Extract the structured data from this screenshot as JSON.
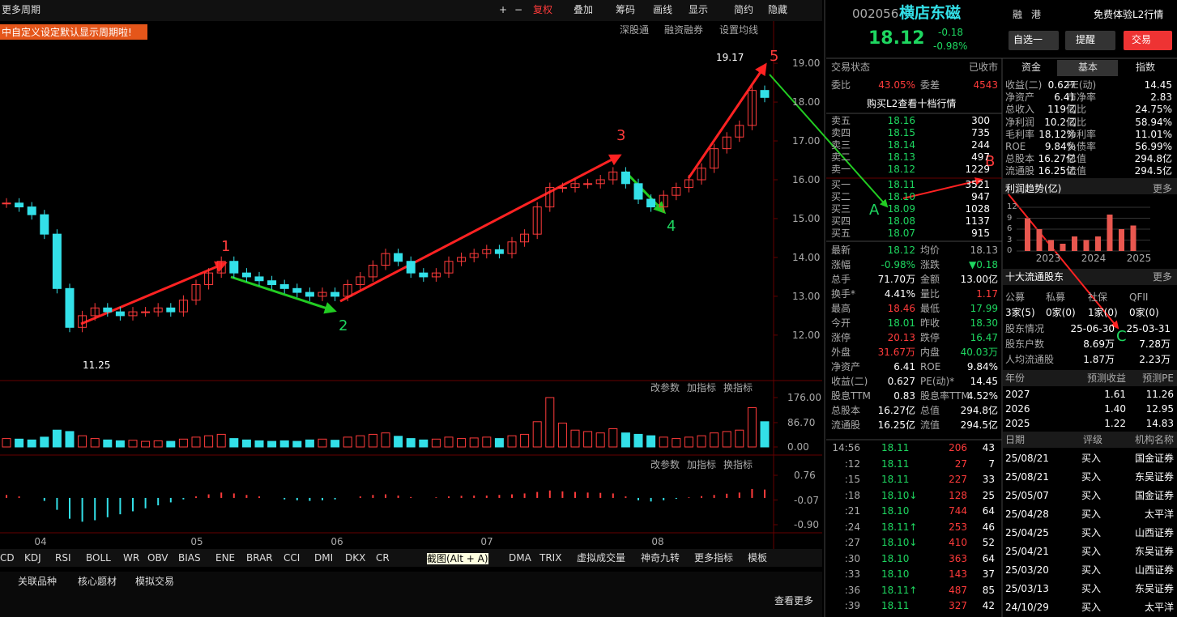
{
  "toolbar": {
    "period": "更多周期",
    "notice": "中自定义设定默认显示周期啦!",
    "buttons": [
      "+",
      "−",
      "复权",
      "叠加",
      "筹码",
      "画线",
      "显示",
      "简约",
      "隐藏"
    ],
    "sub": [
      "深股通",
      "融资融券",
      "设置均线"
    ]
  },
  "price_chart": {
    "type": "candlestick",
    "ylim": [
      10.83,
      19.69
    ],
    "yticks": [
      {
        "value": 19,
        "label": "19.00"
      },
      {
        "value": 18,
        "label": "18.00"
      },
      {
        "value": 17,
        "label": "17.00"
      },
      {
        "value": 16,
        "label": "16.00"
      },
      {
        "value": 15,
        "label": "15.00"
      },
      {
        "value": 14,
        "label": "14.00"
      },
      {
        "value": 13,
        "label": "13.00"
      },
      {
        "value": 12,
        "label": "12.00"
      }
    ],
    "closes": [
      15.4,
      15.3,
      15.1,
      14.6,
      13.2,
      12.2,
      12.5,
      12.7,
      12.6,
      12.5,
      12.6,
      12.6,
      12.7,
      12.6,
      12.9,
      13.3,
      13.6,
      13.9,
      13.6,
      13.5,
      13.4,
      13.3,
      13.2,
      13.1,
      13.0,
      13.1,
      13.0,
      13.3,
      13.5,
      13.8,
      14.1,
      13.9,
      13.6,
      13.5,
      13.6,
      13.9,
      14.0,
      14.1,
      14.2,
      14.1,
      14.4,
      14.6,
      15.3,
      15.8,
      15.8,
      15.9,
      15.9,
      16.0,
      16.2,
      15.9,
      15.5,
      15.3,
      15.6,
      15.8,
      16.0,
      16.3,
      16.8,
      17.1,
      17.4,
      18.3,
      18.12
    ],
    "high_label": "19.17",
    "low_label": "11.25",
    "annotations": [
      "1",
      "2",
      "3",
      "4",
      "5",
      "A",
      "B",
      "C"
    ],
    "months": [
      "04",
      "05",
      "06",
      "07",
      "08"
    ]
  },
  "volume_chart": {
    "type": "bar",
    "ylim": [
      0,
      176
    ],
    "yticks": [
      {
        "value": 176,
        "label": "176.00"
      },
      {
        "value": 86.7,
        "label": "86.70"
      },
      {
        "value": 0,
        "label": "0.00"
      }
    ],
    "values": [
      30,
      28,
      25,
      35,
      60,
      55,
      40,
      30,
      25,
      22,
      24,
      20,
      22,
      20,
      28,
      35,
      40,
      45,
      30,
      25,
      22,
      20,
      22,
      20,
      25,
      28,
      24,
      35,
      40,
      45,
      50,
      38,
      30,
      25,
      28,
      35,
      30,
      32,
      35,
      30,
      40,
      45,
      90,
      176,
      85,
      60,
      55,
      50,
      65,
      50,
      45,
      40,
      35,
      30,
      35,
      40,
      50,
      55,
      60,
      140,
      90
    ],
    "tools": [
      "改参数",
      "加指标",
      "换指标"
    ]
  },
  "macd_chart": {
    "type": "bar",
    "ylim": [
      -0.9,
      0.76
    ],
    "yticks": [
      {
        "value": 0.76,
        "label": "0.76"
      },
      {
        "value": -0.07,
        "label": "-0.07"
      },
      {
        "value": -0.9,
        "label": "-0.90"
      }
    ],
    "values": [
      0.1,
      0.05,
      0,
      -0.1,
      -0.4,
      -0.7,
      -0.8,
      -0.75,
      -0.65,
      -0.55,
      -0.45,
      -0.35,
      -0.25,
      -0.15,
      -0.05,
      0.05,
      0.12,
      0.18,
      0.15,
      0.1,
      0.05,
      0,
      -0.05,
      -0.08,
      -0.1,
      -0.08,
      -0.05,
      0,
      0.05,
      0.1,
      0.12,
      0.08,
      0.03,
      0,
      0.02,
      0.05,
      0.07,
      0.08,
      0.08,
      0.1,
      0.12,
      0.15,
      0.2,
      0.25,
      0.22,
      0.2,
      0.18,
      0.17,
      0.15,
      0.05,
      -0.08,
      -0.12,
      -0.08,
      -0.03,
      0.02,
      0.06,
      0.1,
      0.14,
      0.18,
      0.3,
      0.28
    ],
    "tools": [
      "改参数",
      "加指标",
      "换指标"
    ]
  },
  "indicator_tabs": [
    "CD",
    "KDJ",
    "RSI",
    "BOLL",
    "WR",
    "OBV",
    "BIAS",
    "ENE",
    "BRAR",
    "CCI",
    "DMI",
    "DKX",
    "CR",
    "DMA",
    "TRIX",
    "虚拟成交量",
    "神奇九转",
    "更多指标",
    "模板"
  ],
  "tooltip": "截图(Alt + A)",
  "bottom_tabs": [
    "关联品种",
    "核心题材",
    "模拟交易"
  ],
  "see_more": "查看更多",
  "quote": {
    "code": "002056",
    "name": "横店东磁",
    "tags": [
      "融",
      "港"
    ],
    "l2": "免费体验L2行情",
    "price": "18.12",
    "change": "-0.18",
    "pct": "-0.98%",
    "buttons": [
      "自选一",
      "提醒",
      "交易"
    ],
    "status": [
      "交易状态",
      "已收市"
    ],
    "ratio": [
      "委比",
      "43.05%",
      "委差",
      "4543"
    ],
    "buy_l2": "购买L2查看十档行情",
    "sells": [
      [
        "卖五",
        "18.16",
        "300"
      ],
      [
        "卖四",
        "18.15",
        "735"
      ],
      [
        "卖三",
        "18.14",
        "244"
      ],
      [
        "卖二",
        "18.13",
        "497"
      ],
      [
        "卖一",
        "18.12",
        "1229"
      ]
    ],
    "buys": [
      [
        "买一",
        "18.11",
        "3521"
      ],
      [
        "买二",
        "18.10",
        "947"
      ],
      [
        "买三",
        "18.09",
        "1028"
      ],
      [
        "买四",
        "18.08",
        "1137"
      ],
      [
        "买五",
        "18.07",
        "915"
      ]
    ],
    "stats": [
      [
        "最新",
        "18.12",
        "均价",
        "18.13"
      ],
      [
        "涨幅",
        "-0.98%",
        "涨跌",
        "▼0.18"
      ],
      [
        "总手",
        "71.70万",
        "金额",
        "13.00亿"
      ],
      [
        "换手*",
        "4.41%",
        "量比",
        "1.17"
      ],
      [
        "最高",
        "18.46",
        "最低",
        "17.99"
      ],
      [
        "今开",
        "18.01",
        "昨收",
        "18.30"
      ],
      [
        "涨停",
        "20.13",
        "跌停",
        "16.47"
      ],
      [
        "外盘",
        "31.67万",
        "内盘",
        "40.03万"
      ],
      [
        "净资产",
        "6.41",
        "ROE",
        "9.84%"
      ],
      [
        "收益(二)",
        "0.627",
        "PE(动)*",
        "14.45"
      ],
      [
        "股息TTM",
        "0.83",
        "股息率TTM",
        "4.52%"
      ],
      [
        "总股本",
        "16.27亿",
        "总值",
        "294.8亿"
      ],
      [
        "流通股",
        "16.25亿",
        "流值",
        "294.5亿"
      ]
    ],
    "ticks": [
      [
        "14:56",
        "18.11",
        "206",
        "43"
      ],
      [
        ":12",
        "18.11",
        "27",
        "7"
      ],
      [
        ":15",
        "18.11",
        "227",
        "33"
      ],
      [
        ":18",
        "18.10↓",
        "128",
        "25"
      ],
      [
        ":21",
        "18.10",
        "744",
        "64"
      ],
      [
        ":24",
        "18.11↑",
        "253",
        "46"
      ],
      [
        ":27",
        "18.10↓",
        "410",
        "52"
      ],
      [
        ":30",
        "18.10",
        "363",
        "64"
      ],
      [
        ":33",
        "18.10",
        "143",
        "37"
      ],
      [
        ":36",
        "18.11↑",
        "487",
        "85"
      ],
      [
        ":39",
        "18.11",
        "327",
        "42"
      ]
    ]
  },
  "fundamentals": {
    "tabs": [
      "资金",
      "基本",
      "指数"
    ],
    "rows": [
      [
        "收益(二)",
        "0.627",
        "PE(动)",
        "14.45"
      ],
      [
        "净资产",
        "6.41",
        "市净率",
        "2.83"
      ],
      [
        "总收入",
        "119亿",
        "同比",
        "24.75%"
      ],
      [
        "净利润",
        "10.2亿",
        "同比",
        "58.94%"
      ],
      [
        "毛利率",
        "18.12%",
        "净利率",
        "11.01%"
      ],
      [
        "ROE",
        "9.84%",
        "负债率",
        "56.99%"
      ],
      [
        "总股本",
        "16.27亿",
        "总值",
        "294.8亿"
      ],
      [
        "流通股",
        "16.25亿",
        "流值",
        "294.5亿"
      ]
    ]
  },
  "profit_trend": {
    "type": "bar",
    "title": "利润趋势(亿)",
    "more": "更多",
    "ylim": [
      0,
      12
    ],
    "yticks": [
      12,
      9,
      6,
      3,
      0
    ],
    "years": [
      "2023",
      "2024",
      "2025"
    ],
    "values": [
      9,
      6,
      3,
      2,
      4,
      3,
      4,
      10,
      6,
      7
    ]
  },
  "holders": {
    "title": "十大流通股东",
    "more": "更多",
    "types": [
      "公募",
      "私募",
      "社保",
      "QFII"
    ],
    "counts": [
      "3家(5)",
      "0家(0)",
      "1家(0)",
      "0家(0)"
    ],
    "rows": [
      [
        "股东情况",
        "25-06-30",
        "25-03-31"
      ],
      [
        "股东户数",
        "8.69万",
        "7.28万"
      ],
      [
        "人均流通股",
        "1.87万",
        "2.23万"
      ]
    ]
  },
  "forecast": {
    "header": [
      "年份",
      "预测收益",
      "预测PE"
    ],
    "rows": [
      [
        "2027",
        "1.61",
        "11.26"
      ],
      [
        "2026",
        "1.40",
        "12.95"
      ],
      [
        "2025",
        "1.22",
        "14.83"
      ]
    ]
  },
  "ratings": {
    "header": [
      "日期",
      "评级",
      "机构名称"
    ],
    "rows": [
      [
        "25/08/21",
        "买入",
        "国金证券"
      ],
      [
        "25/08/21",
        "买入",
        "东吴证券"
      ],
      [
        "25/05/07",
        "买入",
        "国金证券"
      ],
      [
        "25/04/28",
        "买入",
        "太平洋"
      ],
      [
        "25/04/25",
        "买入",
        "山西证券"
      ],
      [
        "25/04/21",
        "买入",
        "东吴证券"
      ],
      [
        "25/03/20",
        "买入",
        "山西证券"
      ],
      [
        "25/03/13",
        "买入",
        "东吴证券"
      ],
      [
        "24/10/29",
        "买入",
        "太平洋"
      ]
    ]
  }
}
